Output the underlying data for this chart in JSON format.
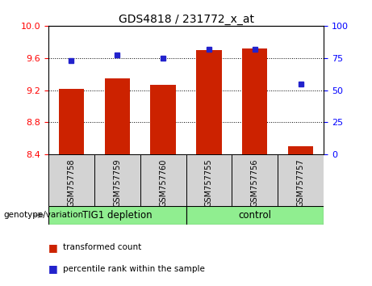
{
  "title": "GDS4818 / 231772_x_at",
  "samples": [
    "GSM757758",
    "GSM757759",
    "GSM757760",
    "GSM757755",
    "GSM757756",
    "GSM757757"
  ],
  "bar_values": [
    9.22,
    9.35,
    9.27,
    9.7,
    9.72,
    8.5
  ],
  "percentile_values": [
    73,
    77,
    75,
    82,
    82,
    55
  ],
  "ylim_left": [
    8.4,
    10.0
  ],
  "ylim_right": [
    0,
    100
  ],
  "yticks_left": [
    8.4,
    8.8,
    9.2,
    9.6,
    10.0
  ],
  "yticks_right": [
    0,
    25,
    50,
    75,
    100
  ],
  "bar_color": "#cc2200",
  "dot_color": "#2222cc",
  "group_info": [
    {
      "label": "TIG1 depletion",
      "xmin": -0.5,
      "xmax": 2.5
    },
    {
      "label": "control",
      "xmin": 2.5,
      "xmax": 5.5
    }
  ],
  "legend_items": [
    "transformed count",
    "percentile rank within the sample"
  ],
  "grid_lines": [
    8.8,
    9.2,
    9.6
  ]
}
